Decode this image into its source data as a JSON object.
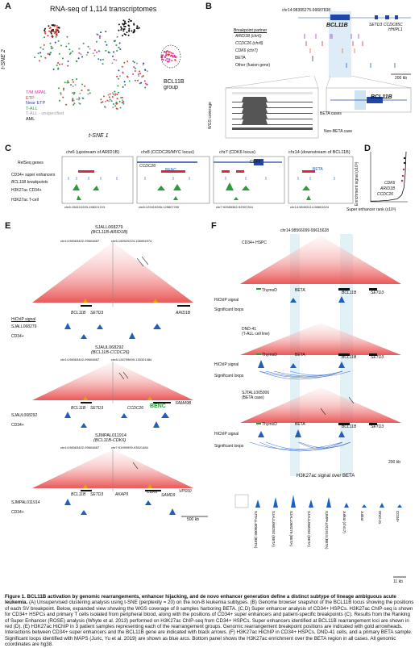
{
  "panels": {
    "A": {
      "label": "A",
      "title": "RNA-seq of 1,114 transcriptomes",
      "xlabel": "t-SNE 1",
      "ylabel": "t-SNE 2",
      "group_label": "BCL11B group",
      "legend": [
        {
          "label": "T/M MPAL",
          "color": "#d63aa5"
        },
        {
          "label": "ETP",
          "color": "#e23b2e"
        },
        {
          "label": "Near ETP",
          "color": "#2e3fb7"
        },
        {
          "label": "T-ALL",
          "color": "#28a052"
        },
        {
          "label": "T-ALL - unspecified",
          "color": "#9aa0a6"
        },
        {
          "label": "AML",
          "color": "#111111"
        }
      ]
    },
    "B": {
      "label": "B",
      "coords": "chr14:98395275-99687838",
      "genes": [
        "BCL11B",
        "SETD3",
        "CCDC85C",
        "HHIPL1"
      ],
      "header": "Breakpoint partner",
      "rows": [
        "ARID1B (chr6)",
        "CCDC26 (chr8)",
        "CDK6 (chr7)",
        "BETA",
        "Other (fusion gene)"
      ],
      "wgs_label": "WGS coverage",
      "beta_cases": "BETA cases",
      "non_beta": "Non-BETA case",
      "zoom_gene": "BCL11B",
      "scale": "200 kb"
    },
    "C": {
      "label": "C",
      "columns": [
        {
          "title": "chr6 (upstream of ARID1B)",
          "coord": "chr6:158101933-158221213"
        },
        {
          "title": "chr8 (CCDC26/MYC locus)",
          "coord": "chr8:129419265-129807230"
        },
        {
          "title": "chr7 (CDK6 locus)",
          "coord": "chr7:92565362-92907264"
        },
        {
          "title": "chr14 (downstream of BCL11B)",
          "coord": "chr14:98492414-98601624"
        }
      ],
      "tracks": [
        "RefSeq genes",
        "CD34+ super enhancers",
        "BCL11B breakpoints",
        "H3K27ac CD34+",
        "H3K27ac T-cell"
      ],
      "gene_labels": [
        "CCDC26",
        "CDK6",
        "BENC",
        "BETA"
      ]
    },
    "D": {
      "label": "D",
      "ylabel": "Enrichment signal (x10³)",
      "xlabel": "Super enhancer rank (x10³)",
      "annotations": [
        "CDK6",
        "ARID1B",
        "CCDC26"
      ],
      "chart_data": {
        "type": "line",
        "title": "",
        "xlabel": "Super enhancer rank (x10³)",
        "ylabel": "Enrichment signal (x10³)",
        "x": [
          0,
          2,
          4,
          6,
          7,
          7.5,
          7.8,
          8
        ],
        "values": [
          0.1,
          0.15,
          0.25,
          0.5,
          1.2,
          2.5,
          5,
          9
        ]
      }
    },
    "E": {
      "label": "E",
      "samples": [
        {
          "id": "SJALL068279",
          "sub": "(BCL11B-ARID1B)",
          "coordL": "chr14:98063402-99604887",
          "coordR": "chr6:155520224-156994974",
          "genes": [
            "BCL11B",
            "SETD3",
            "ARID1B"
          ]
        },
        {
          "id": "SJAUL068292",
          "sub": "(BCL11B-CCDC26)",
          "coordL": "chr14:98063402-99604887",
          "coordR": "chr8:128799699-130321484",
          "genes": [
            "BCL11B",
            "SETD3",
            "CCDC26",
            "BENC",
            "FAM49B"
          ]
        },
        {
          "id": "SJMPAL011914",
          "sub": "(BCL11B-CDK6)",
          "coordL": "chr14:98063402-99604887",
          "coordR": "chr7:91999999-93521484",
          "genes": [
            "BCL11B",
            "SETD3",
            "AKAP9",
            "CDK6",
            "SAMD9",
            "VPS50"
          ]
        }
      ],
      "hichip": "HiChIP signal",
      "cd34": "CD34+",
      "scale": "500 kb"
    },
    "F": {
      "label": "F",
      "coords": "chr14:98566099-99615628",
      "samples": [
        {
          "name": "CD34+ HSPC"
        },
        {
          "name": "DND-41",
          "sub": "(T-ALL cell line)"
        },
        {
          "name": "SJTALL005006",
          "sub": "(BETA case)"
        }
      ],
      "tracks": {
        "hichip": "HiChIP signal",
        "loops": "Significant loops"
      },
      "genes": [
        "ThymoD",
        "BETA",
        "BCL11B",
        "SETD3"
      ],
      "scale": "200 kb",
      "bottom_title": "H3K27ac signal over BETA",
      "bottom_samples": [
        "SJTALL005006 (BETA)",
        "SJAUL068292 (BETA)",
        "SJALL068279 (BETA)",
        "SJAUL068292 (BETA)",
        "SJMPAL011914 (BETA)",
        "Jurkat (chr17)",
        "Jurkat",
        "DND-41",
        "CD34+"
      ],
      "bottom_scale": "11 kb"
    }
  },
  "caption": {
    "bold_intro": "Figure 1. BCL11B activation by genomic rearrangements, enhancer hijacking, and de novo enhancer generation define a distinct subtype of lineage ambiguous acute leukemia.",
    "body": " (A) Unsupervised clustering analysis using t-SNE (perplexity = 20) on the non-B leukemia subtypes. (B) Genome browser snapshot of the BCL11B locus showing the positions of each SV breakpoint. Below, expanded view showing the WGS coverage of 8 samples harboring BETA. (C,D) Super enhancer analysis of CD34+ HSPCs. H3K27ac ChIP-seq is shown for CD34+ HSPCs and primary T cells isolated from peripheral blood, along with the positions of CD34+ super enhancers and patient-specific breakpoints (C). Results from the Ranking of Super Enhancer (ROSE) analysis (Whyte et al. 2013) performed on H3K27ac ChIP-seq from CD34+ HSPCs. Super enhancers identified at BCL11B rearrangement loci are shown in red (D). (E) H3K27ac HiChIP in 3 patient samples representing each of the rearrangement groups. Genomic rearrangement breakpoint positions are indicated with gold arrowheads. Interactions between CD34+ super enhancers and the BCL11B gene are indicated with black arrows. (F) H3K27ac HiChIP in CD34+ HSPCs, DND-41 cells, and a primary BETA sample. Significant loops identified with MAPS (Juric, Yu et al. 2019) are shown as blue arcs. Bottom panel shows the H3K27ac enrichment over the BETA region in all cases. All genomic coordinates are hg38."
  }
}
